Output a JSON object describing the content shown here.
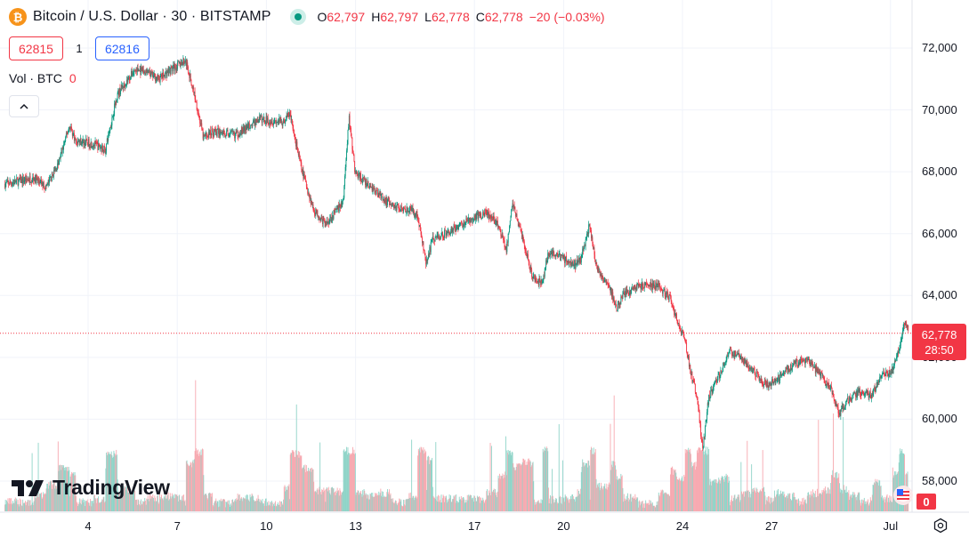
{
  "header": {
    "symbol": "Bitcoin / U.S. Dollar · 30 · BITSTAMP",
    "btc_glyph": "₿",
    "ohlc": {
      "o_label": "O",
      "o_value": "62,797",
      "h_label": "H",
      "h_value": "62,797",
      "l_label": "L",
      "l_value": "62,778",
      "c_label": "C",
      "c_value": "62,778",
      "change": "−20 (−0.03%)"
    }
  },
  "quote": {
    "sell": "62815",
    "spread": "1",
    "buy": "62816"
  },
  "volume": {
    "label": "Vol · BTC",
    "value": "0"
  },
  "logo": {
    "text": "TradingView"
  },
  "price_tag": {
    "price": "62,778",
    "countdown": "28:50"
  },
  "vol_tag": "0",
  "colors": {
    "up": "#089981",
    "down": "#f23645",
    "grid": "#f0f3fa",
    "last_price_line": "#f23645"
  },
  "icons": [
    "bitcoin-icon",
    "market-status-icon",
    "chevron-up-icon",
    "tradingview-logo-icon",
    "us-flag-icon",
    "settings-icon"
  ],
  "chart_data": {
    "type": "candlestick",
    "interval": "30",
    "ylim": [
      57500,
      72500
    ],
    "y_ticks": [
      {
        "value": 72000,
        "label": "72,000"
      },
      {
        "value": 70000,
        "label": "70,000"
      },
      {
        "value": 68000,
        "label": "68,000"
      },
      {
        "value": 66000,
        "label": "66,000"
      },
      {
        "value": 64000,
        "label": "64,000"
      },
      {
        "value": 62000,
        "label": "62,000"
      },
      {
        "value": 60000,
        "label": "60,000"
      },
      {
        "value": 58000,
        "label": "58,000"
      }
    ],
    "x_ticks": [
      {
        "day": 4,
        "label": "4"
      },
      {
        "day": 7,
        "label": "7"
      },
      {
        "day": 10,
        "label": "10"
      },
      {
        "day": 13,
        "label": "13"
      },
      {
        "day": 17,
        "label": "17"
      },
      {
        "day": 20,
        "label": "20"
      },
      {
        "day": 24,
        "label": "24"
      },
      {
        "day": 27,
        "label": "27"
      },
      {
        "day": 31,
        "label": "Jul"
      }
    ],
    "x_range_days": [
      1.2,
      31.6
    ],
    "last_price": 62778,
    "price_path": [
      [
        1.2,
        67600
      ],
      [
        2.2,
        67800
      ],
      [
        2.6,
        67500
      ],
      [
        3.0,
        68200
      ],
      [
        3.4,
        69500
      ],
      [
        3.6,
        69000
      ],
      [
        4.2,
        68900
      ],
      [
        4.6,
        68700
      ],
      [
        5.0,
        70500
      ],
      [
        5.6,
        71300
      ],
      [
        6.0,
        71200
      ],
      [
        6.4,
        71000
      ],
      [
        6.8,
        71300
      ],
      [
        7.3,
        71600
      ],
      [
        7.6,
        70500
      ],
      [
        7.9,
        69100
      ],
      [
        8.2,
        69300
      ],
      [
        9.0,
        69200
      ],
      [
        9.8,
        69700
      ],
      [
        10.6,
        69600
      ],
      [
        10.8,
        69900
      ],
      [
        11.2,
        68100
      ],
      [
        11.6,
        66800
      ],
      [
        12.0,
        66300
      ],
      [
        12.6,
        67000
      ],
      [
        12.8,
        69800
      ],
      [
        13.0,
        68000
      ],
      [
        13.4,
        67600
      ],
      [
        13.8,
        67300
      ],
      [
        14.2,
        66900
      ],
      [
        14.8,
        66800
      ],
      [
        15.1,
        66600
      ],
      [
        15.4,
        65000
      ],
      [
        15.6,
        65800
      ],
      [
        16.2,
        66100
      ],
      [
        16.8,
        66400
      ],
      [
        17.4,
        66700
      ],
      [
        17.8,
        66300
      ],
      [
        18.1,
        65500
      ],
      [
        18.3,
        67000
      ],
      [
        18.6,
        66000
      ],
      [
        19.0,
        64500
      ],
      [
        19.3,
        64400
      ],
      [
        19.5,
        65400
      ],
      [
        20.0,
        65200
      ],
      [
        20.4,
        65000
      ],
      [
        20.6,
        65200
      ],
      [
        20.9,
        66300
      ],
      [
        21.1,
        65000
      ],
      [
        21.6,
        64200
      ],
      [
        21.8,
        63500
      ],
      [
        22.0,
        64000
      ],
      [
        22.5,
        64300
      ],
      [
        23.2,
        64300
      ],
      [
        23.6,
        63900
      ],
      [
        23.8,
        63300
      ],
      [
        24.1,
        62600
      ],
      [
        24.3,
        61500
      ],
      [
        24.5,
        60800
      ],
      [
        24.7,
        59000
      ],
      [
        24.9,
        60700
      ],
      [
        25.3,
        61500
      ],
      [
        25.6,
        62200
      ],
      [
        26.0,
        62000
      ],
      [
        26.4,
        61600
      ],
      [
        26.8,
        61100
      ],
      [
        27.1,
        61200
      ],
      [
        27.4,
        61500
      ],
      [
        27.8,
        61800
      ],
      [
        28.2,
        61900
      ],
      [
        28.6,
        61500
      ],
      [
        29.0,
        61000
      ],
      [
        29.3,
        60200
      ],
      [
        29.6,
        60600
      ],
      [
        30.0,
        60900
      ],
      [
        30.4,
        60800
      ],
      [
        30.7,
        61400
      ],
      [
        31.1,
        61600
      ],
      [
        31.3,
        62200
      ],
      [
        31.5,
        63200
      ],
      [
        31.6,
        62900
      ]
    ]
  }
}
